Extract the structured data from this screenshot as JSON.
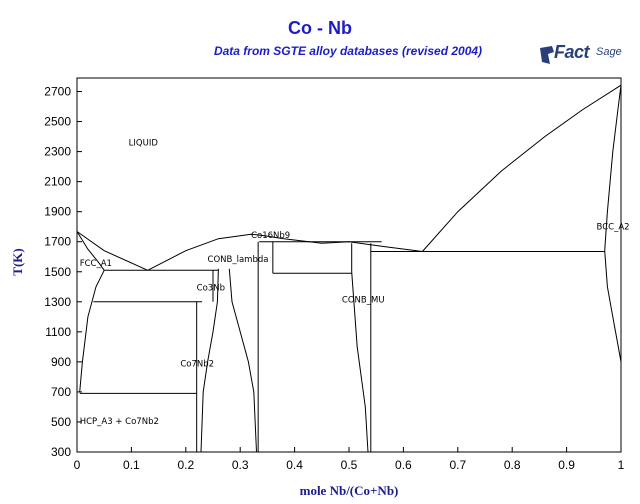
{
  "header": {
    "title": "Co - Nb",
    "subtitle": "Data from SGTE alloy databases (revised 2004)",
    "logo_text_main": "Fact",
    "logo_text_sup": "Sage"
  },
  "colors": {
    "title": "#1c1cc8",
    "axis_title": "#1c1c8c",
    "line": "#000000"
  },
  "chart_data": {
    "type": "phase-diagram",
    "xlabel": "mole Nb/(Co+Nb)",
    "ylabel": "T(K)",
    "xlim": [
      0,
      1
    ],
    "ylim": [
      300,
      2790
    ],
    "xticks": [
      "0",
      "0.1",
      "0.2",
      "0.3",
      "0.4",
      "0.5",
      "0.6",
      "0.7",
      "0.8",
      "0.9",
      "1"
    ],
    "yticks": [
      "300",
      "500",
      "700",
      "900",
      "1100",
      "1300",
      "1500",
      "1700",
      "1900",
      "2100",
      "2300",
      "2500",
      "2700"
    ],
    "phase_labels": [
      {
        "text": "LIQUID",
        "x": 0.095,
        "y": 2340
      },
      {
        "text": "FCC_A1",
        "x": 0.005,
        "y": 1540
      },
      {
        "text": "CONB_lambda",
        "x": 0.24,
        "y": 1565
      },
      {
        "text": "Co3Nb",
        "x": 0.22,
        "y": 1375
      },
      {
        "text": "Co16Nb9",
        "x": 0.32,
        "y": 1725
      },
      {
        "text": "CONB_MU",
        "x": 0.487,
        "y": 1295
      },
      {
        "text": "Co7Nb2",
        "x": 0.19,
        "y": 870
      },
      {
        "text": "BCC_A2",
        "x": 0.955,
        "y": 1780
      },
      {
        "text": "HCP_A3 + Co7Nb2",
        "x": 0.005,
        "y": 485
      }
    ],
    "lines": [
      {
        "name": "liquidus-co-side",
        "points": [
          [
            0,
            1768
          ],
          [
            0.05,
            1640
          ],
          [
            0.13,
            1510
          ]
        ]
      },
      {
        "name": "solidus-fcc",
        "points": [
          [
            0,
            1768
          ],
          [
            0.02,
            1650
          ],
          [
            0.04,
            1560
          ],
          [
            0.05,
            1510
          ]
        ]
      },
      {
        "name": "fcc-solvus",
        "points": [
          [
            0.005,
            700
          ],
          [
            0.01,
            900
          ],
          [
            0.02,
            1200
          ],
          [
            0.035,
            1400
          ],
          [
            0.05,
            1510
          ]
        ]
      },
      {
        "name": "liquidus-laves",
        "points": [
          [
            0.13,
            1510
          ],
          [
            0.2,
            1640
          ],
          [
            0.26,
            1720
          ],
          [
            0.32,
            1750
          ],
          [
            0.345,
            1740
          ],
          [
            0.38,
            1720
          ]
        ]
      },
      {
        "name": "liquidus-mu",
        "points": [
          [
            0.38,
            1720
          ],
          [
            0.45,
            1690
          ],
          [
            0.5,
            1700
          ],
          [
            0.56,
            1670
          ],
          [
            0.635,
            1635
          ]
        ]
      },
      {
        "name": "liquidus-bcc",
        "points": [
          [
            0.635,
            1635
          ],
          [
            0.7,
            1900
          ],
          [
            0.78,
            2170
          ],
          [
            0.86,
            2400
          ],
          [
            0.93,
            2580
          ],
          [
            1.0,
            2742
          ]
        ]
      },
      {
        "name": "solidus-bcc",
        "points": [
          [
            0.97,
            1640
          ],
          [
            0.975,
            1900
          ],
          [
            0.985,
            2300
          ],
          [
            0.995,
            2600
          ],
          [
            1.0,
            2742
          ]
        ]
      },
      {
        "name": "bcc-solvus",
        "points": [
          [
            0.97,
            1640
          ],
          [
            0.975,
            1400
          ],
          [
            0.985,
            1200
          ],
          [
            0.995,
            1000
          ],
          [
            1.0,
            900
          ]
        ]
      },
      {
        "name": "mu-left-boundary",
        "points": [
          [
            0.505,
            1690
          ],
          [
            0.505,
            1500
          ],
          [
            0.515,
            1000
          ],
          [
            0.53,
            600
          ],
          [
            0.535,
            300
          ]
        ]
      },
      {
        "name": "mu-right-boundary",
        "points": [
          [
            0.54,
            1690
          ],
          [
            0.54,
            1200
          ],
          [
            0.54,
            600
          ],
          [
            0.54,
            300
          ]
        ]
      },
      {
        "name": "laves-left-boundary",
        "points": [
          [
            0.26,
            1520
          ],
          [
            0.258,
            1300
          ],
          [
            0.25,
            1100
          ],
          [
            0.24,
            900
          ],
          [
            0.232,
            700
          ],
          [
            0.228,
            300
          ]
        ]
      },
      {
        "name": "laves-right-boundary",
        "points": [
          [
            0.28,
            1520
          ],
          [
            0.285,
            1300
          ],
          [
            0.3,
            1100
          ],
          [
            0.315,
            900
          ],
          [
            0.325,
            700
          ],
          [
            0.33,
            300
          ]
        ]
      }
    ],
    "isotherms": [
      {
        "T": 1510,
        "x": [
          0.05,
          0.26
        ]
      },
      {
        "T": 1300,
        "x": [
          0.03,
          0.23
        ]
      },
      {
        "T": 690,
        "x": [
          0.005,
          0.22
        ]
      },
      {
        "T": 1700,
        "x": [
          0.335,
          0.56
        ]
      },
      {
        "T": 1490,
        "x": [
          0.36,
          0.505
        ]
      },
      {
        "T": 1635,
        "x": [
          0.54,
          0.97
        ]
      }
    ],
    "vertical_phases": [
      {
        "x": 0.22,
        "T": [
          300,
          1300
        ]
      },
      {
        "x": 0.25,
        "T": [
          1300,
          1510
        ]
      },
      {
        "x": 0.333,
        "T": [
          300,
          1700
        ]
      },
      {
        "x": 0.36,
        "T": [
          1490,
          1700
        ]
      }
    ]
  }
}
